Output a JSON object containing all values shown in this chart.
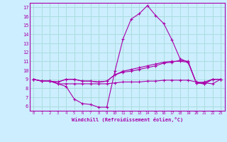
{
  "xlabel": "Windchill (Refroidissement éolien,°C)",
  "background_color": "#cceeff",
  "grid_color": "#aadddd",
  "line_color": "#aa00aa",
  "x_hours": [
    0,
    1,
    2,
    3,
    4,
    5,
    6,
    7,
    8,
    9,
    10,
    11,
    12,
    13,
    14,
    15,
    16,
    17,
    18,
    19,
    20,
    21,
    22,
    23
  ],
  "series": [
    [
      9.0,
      8.8,
      8.8,
      8.5,
      8.2,
      6.8,
      6.3,
      6.2,
      5.9,
      5.9,
      9.9,
      13.5,
      15.7,
      16.3,
      17.2,
      16.1,
      15.2,
      13.4,
      11.3,
      10.9,
      8.6,
      8.5,
      9.0,
      9.0
    ],
    [
      9.0,
      8.8,
      8.8,
      8.7,
      9.0,
      9.0,
      8.8,
      8.8,
      8.7,
      8.8,
      9.5,
      9.9,
      10.1,
      10.3,
      10.5,
      10.7,
      10.9,
      11.0,
      11.0,
      10.9,
      8.6,
      8.7,
      9.0,
      9.0
    ],
    [
      9.0,
      8.8,
      8.8,
      8.7,
      9.0,
      9.0,
      8.8,
      8.8,
      8.7,
      8.8,
      9.5,
      9.8,
      9.9,
      10.1,
      10.3,
      10.5,
      10.8,
      10.9,
      11.1,
      11.0,
      8.6,
      8.5,
      9.0,
      9.0
    ],
    [
      9.0,
      8.8,
      8.8,
      8.5,
      8.5,
      8.5,
      8.5,
      8.5,
      8.5,
      8.5,
      8.6,
      8.7,
      8.7,
      8.7,
      8.8,
      8.8,
      8.9,
      8.9,
      8.9,
      8.9,
      8.7,
      8.6,
      8.5,
      9.0
    ]
  ],
  "ylim": [
    5.5,
    17.5
  ],
  "xlim": [
    -0.5,
    23.5
  ],
  "yticks": [
    6,
    7,
    8,
    9,
    10,
    11,
    12,
    13,
    14,
    15,
    16,
    17
  ],
  "xticks": [
    0,
    1,
    2,
    3,
    4,
    5,
    6,
    7,
    8,
    9,
    10,
    11,
    12,
    13,
    14,
    15,
    16,
    17,
    18,
    19,
    20,
    21,
    22,
    23
  ]
}
